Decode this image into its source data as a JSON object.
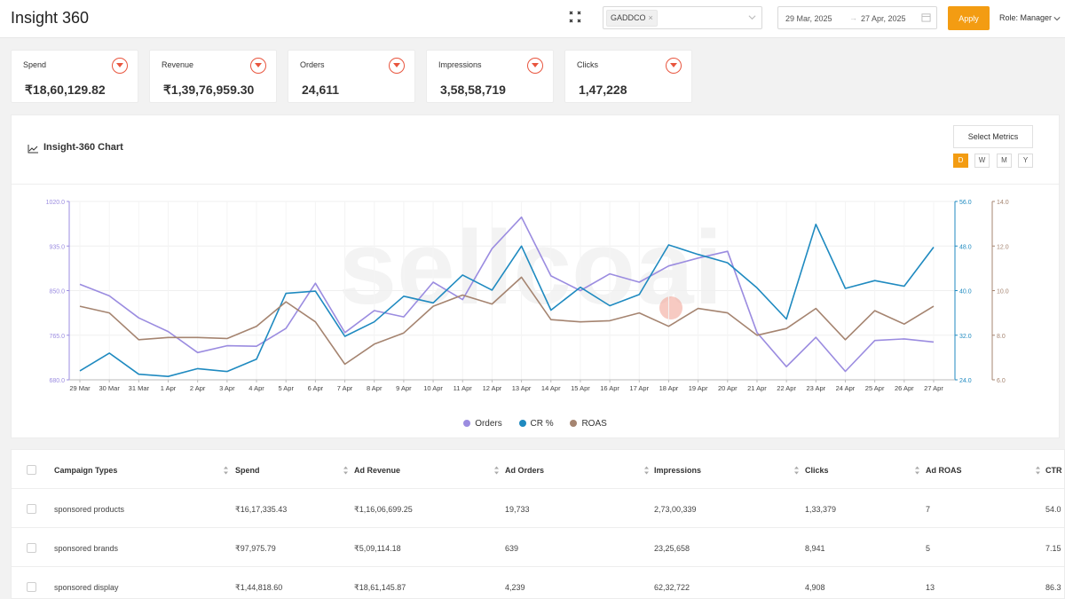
{
  "header": {
    "app_title": "Insight 360",
    "brand_chip": "GADDCO",
    "date_start": "29 Mar, 2025",
    "date_end": "27 Apr, 2025",
    "apply_label": "Apply",
    "role_label": "Role: Manager",
    "accent_color": "#f39c12"
  },
  "kpis": [
    {
      "label": "Spend",
      "value": "₹18,60,129.82"
    },
    {
      "label": "Revenue",
      "value": "₹1,39,76,959.30"
    },
    {
      "label": "Orders",
      "value": "24,611"
    },
    {
      "label": "Impressions",
      "value": "3,58,58,719"
    },
    {
      "label": "Clicks",
      "value": "1,47,228"
    }
  ],
  "chart_panel": {
    "title": "Insight-360 Chart",
    "select_metrics_label": "Select Metrics",
    "granularity": [
      "D",
      "W",
      "M",
      "Y"
    ],
    "active_granularity": "D",
    "watermark": "sellcoai"
  },
  "chart_data": {
    "type": "line",
    "title": "Insight-360 Chart",
    "x": [
      "29 Mar",
      "30 Mar",
      "31 Mar",
      "1 Apr",
      "2 Apr",
      "3 Apr",
      "4 Apr",
      "5 Apr",
      "6 Apr",
      "7 Apr",
      "8 Apr",
      "9 Apr",
      "10 Apr",
      "11 Apr",
      "12 Apr",
      "13 Apr",
      "14 Apr",
      "15 Apr",
      "16 Apr",
      "17 Apr",
      "18 Apr",
      "19 Apr",
      "20 Apr",
      "21 Apr",
      "22 Apr",
      "23 Apr",
      "24 Apr",
      "25 Apr",
      "26 Apr",
      "27 Apr"
    ],
    "axes": [
      {
        "id": "orders",
        "side": "left",
        "range": [
          680,
          1020
        ],
        "ticks": [
          "680.0",
          "765.0",
          "850.0",
          "935.0",
          "1020.0"
        ],
        "color": "#9b8ce0"
      },
      {
        "id": "cr",
        "side": "right",
        "range": [
          24,
          56
        ],
        "ticks": [
          "24.0",
          "32.0",
          "40.0",
          "48.0",
          "56.0"
        ],
        "color": "#1f8ac0"
      },
      {
        "id": "roas",
        "side": "right-outer",
        "range": [
          6,
          14
        ],
        "ticks": [
          "6.0",
          "8.0",
          "10.0",
          "12.0",
          "14.0"
        ],
        "color": "#a58470"
      }
    ],
    "series": [
      {
        "name": "Orders",
        "axis": "orders",
        "color": "#9b8ce0",
        "values": [
          862,
          840,
          798,
          772,
          732,
          745,
          744,
          778,
          864,
          770,
          812,
          800,
          866,
          833,
          930,
          990,
          878,
          850,
          882,
          866,
          897,
          912,
          925,
          770,
          705,
          761,
          696,
          755,
          758,
          752
        ]
      },
      {
        "name": "CR %",
        "axis": "cr",
        "color": "#1f8ac0",
        "values": [
          25.6,
          28.8,
          25.0,
          24.6,
          26.0,
          25.5,
          27.7,
          39.5,
          39.9,
          31.8,
          34.4,
          39.0,
          37.8,
          42.8,
          40.1,
          48.0,
          36.5,
          40.6,
          37.3,
          39.3,
          48.2,
          46.5,
          45.0,
          40.5,
          34.9,
          51.9,
          40.4,
          41.8,
          40.8,
          47.8
        ]
      },
      {
        "name": "ROAS",
        "axis": "roas",
        "color": "#a58470",
        "values": [
          9.3,
          9.0,
          7.8,
          7.9,
          7.9,
          7.85,
          8.4,
          9.5,
          8.6,
          6.7,
          7.6,
          8.1,
          9.3,
          9.8,
          9.4,
          10.6,
          8.7,
          8.6,
          8.65,
          9.0,
          8.4,
          9.2,
          9.0,
          8.0,
          8.3,
          9.2,
          7.8,
          9.1,
          8.5,
          9.3
        ]
      }
    ],
    "legend": "bottom-center",
    "grid": true
  },
  "table": {
    "headers": [
      "Campaign Types",
      "Spend",
      "Ad Revenue",
      "Ad Orders",
      "Impressions",
      "Clicks",
      "Ad ROAS",
      "CTR"
    ],
    "rows": [
      [
        "sponsored products",
        "₹16,17,335.43",
        "₹1,16,06,699.25",
        "19,733",
        "2,73,00,339",
        "1,33,379",
        "7",
        "54.0"
      ],
      [
        "sponsored brands",
        "₹97,975.79",
        "₹5,09,114.18",
        "639",
        "23,25,658",
        "8,941",
        "5",
        "7.15"
      ],
      [
        "sponsored display",
        "₹1,44,818.60",
        "₹18,61,145.87",
        "4,239",
        "62,32,722",
        "4,908",
        "13",
        "86.3"
      ]
    ]
  }
}
